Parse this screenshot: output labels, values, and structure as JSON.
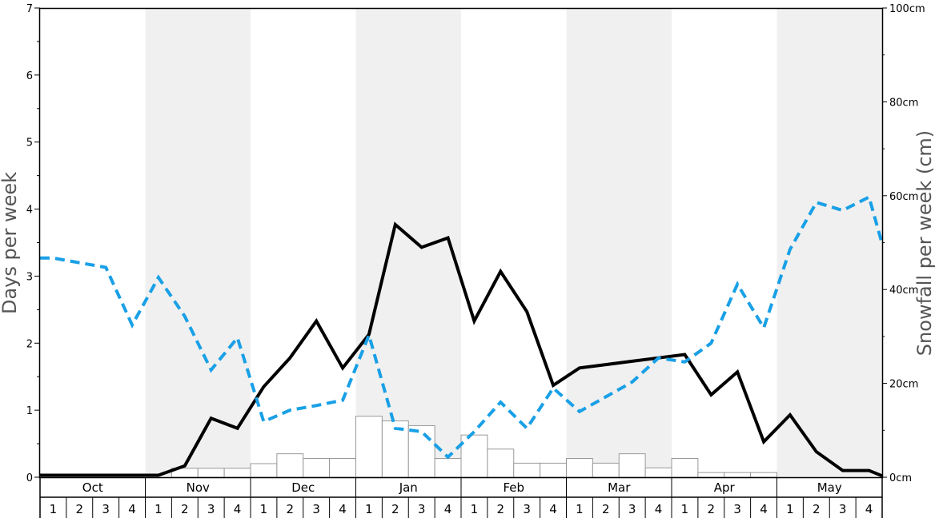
{
  "chart_data": {
    "type": "bar+line",
    "y_left": {
      "label": "Days per week",
      "ylim": [
        0,
        7
      ],
      "ticks": [
        "0",
        "1",
        "2",
        "3",
        "4",
        "5",
        "6",
        "7"
      ]
    },
    "y_right": {
      "label": "Snowfall per week (cm)",
      "ylim": [
        0,
        100
      ],
      "ticks": [
        "0cm",
        "20cm",
        "40cm",
        "60cm",
        "80cm",
        "100cm"
      ]
    },
    "months": [
      "Oct",
      "Nov",
      "Dec",
      "Jan",
      "Feb",
      "Mar",
      "Apr",
      "May"
    ],
    "weeks": [
      "1",
      "2",
      "3",
      "4"
    ],
    "shaded_months": [
      false,
      true,
      false,
      true,
      false,
      true,
      false,
      true
    ],
    "series": [
      {
        "kind": "bar",
        "axis": "right",
        "values": [
          0,
          0,
          0,
          0,
          0,
          1.9,
          1.9,
          1.9,
          2.9,
          5,
          4,
          4,
          13,
          12,
          11,
          4,
          9,
          6,
          3,
          3,
          4,
          3,
          5,
          2,
          4,
          1,
          1,
          1,
          0,
          0,
          0,
          0
        ]
      },
      {
        "kind": "line",
        "axis": "left",
        "style": "solid",
        "color": "#000000",
        "values": [
          0.03,
          0.03,
          0.03,
          0.03,
          0.03,
          0.17,
          0.88,
          0.73,
          1.35,
          1.78,
          2.33,
          1.63,
          2.13,
          3.77,
          3.43,
          3.57,
          2.33,
          3.07,
          2.47,
          1.37,
          1.63,
          1.68,
          1.73,
          1.78,
          1.83,
          1.23,
          1.57,
          0.53,
          0.93,
          0.38,
          0.1,
          0.1
        ]
      },
      {
        "kind": "line",
        "axis": "left",
        "style": "dashed",
        "color": "#19a0e6",
        "values": [
          3.27,
          3.2,
          3.13,
          2.27,
          2.98,
          2.4,
          1.6,
          2.08,
          0.83,
          1,
          1.07,
          1.15,
          2.12,
          0.73,
          0.68,
          0.3,
          0.68,
          1.12,
          0.73,
          1.33,
          0.98,
          1.2,
          1.42,
          1.78,
          1.72,
          2,
          2.88,
          2.23,
          3.4,
          4.1,
          3.98,
          4.18
        ]
      }
    ],
    "tail": {
      "solid_end": 0.02,
      "dashed_end": 3.48
    }
  }
}
